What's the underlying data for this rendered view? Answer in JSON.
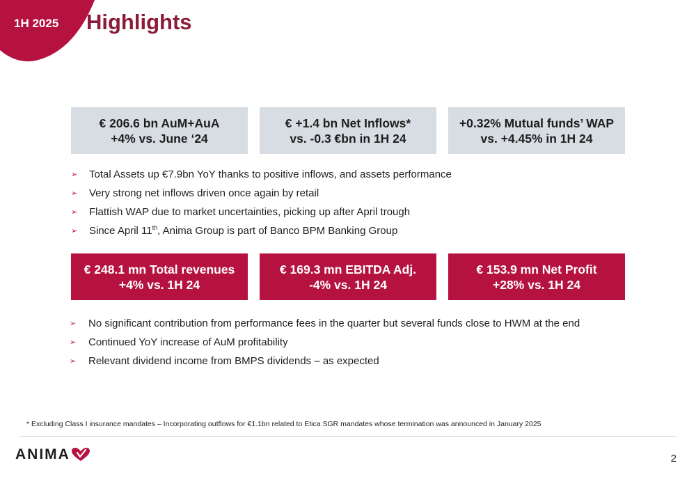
{
  "header": {
    "period": "1H 2025",
    "title": "Highlights"
  },
  "kpis_top": [
    {
      "line1": "€ 206.6 bn AuM+AuA",
      "line2": "+4% vs. June ‘24"
    },
    {
      "line1": "€ +1.4 bn Net Inflows*",
      "line2": "vs. -0.3 €bn in 1H 24"
    },
    {
      "line1": "+0.32% Mutual funds’ WAP",
      "line2": "vs. +4.45% in 1H 24"
    }
  ],
  "bullets_top": [
    {
      "text": "Total Assets up €7.9bn YoY thanks to positive inflows, and assets performance"
    },
    {
      "text": "Very strong net inflows driven once again by retail"
    },
    {
      "text": "Flattish WAP due to market uncertainties, picking up after April trough"
    },
    {
      "text_before": "Since April 11",
      "sup": "th",
      "text_after": ", Anima Group is part of Banco BPM Banking Group"
    }
  ],
  "kpis_bottom": [
    {
      "line1": "€ 248.1 mn Total revenues",
      "line2": "+4% vs. 1H 24"
    },
    {
      "line1": "€ 169.3 mn EBITDA Adj.",
      "line2": "-4% vs. 1H 24"
    },
    {
      "line1": "€ 153.9 mn Net Profit",
      "line2": "+28% vs. 1H 24"
    }
  ],
  "bullets_bottom": [
    {
      "text": "No significant contribution from performance fees in the quarter but several funds close to HWM at the end"
    },
    {
      "text": "Continued YoY increase of AuM profitability"
    },
    {
      "text": "Relevant dividend income from BMPS dividends – as expected"
    }
  ],
  "footnote": "* Excluding Class I insurance mandates – Incorporating outflows for €1.1bn related to Etica SGR mandates whose termination was announced in January 2025",
  "footer": {
    "logo_text": "ANIMA",
    "page_number": "2"
  },
  "colors": {
    "brand_red": "#b5123f",
    "title_red": "#8c1b3b",
    "kpi_grey": "#d7dde2",
    "bullet_arrow": "#b5123f"
  },
  "icons": {
    "bullet": "arrow-bullet-icon",
    "logo_mark": "heart-logo-icon"
  }
}
